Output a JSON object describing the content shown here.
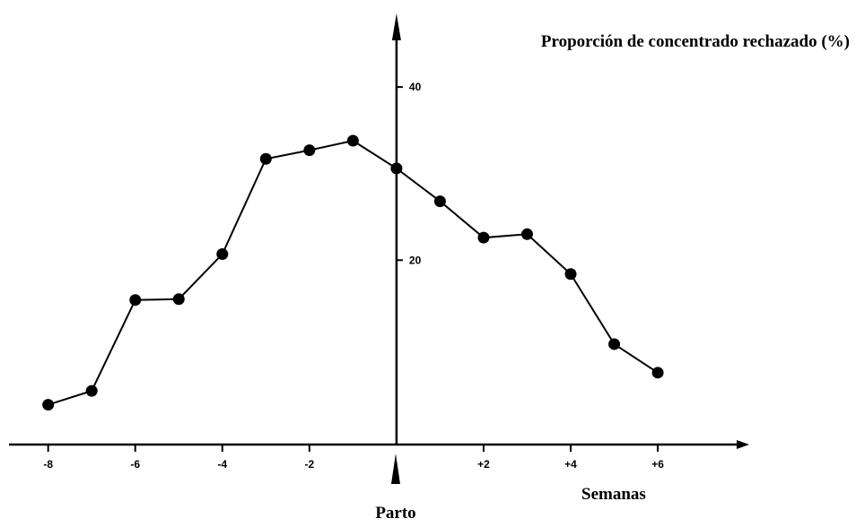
{
  "chart_data": {
    "type": "line",
    "y_label": "Proporción de concentrado rechazado (%)",
    "x_label": "Semanas",
    "annotation": "Parto",
    "x": [
      -8,
      -7,
      -6,
      -5,
      -4,
      -3,
      -2,
      -1,
      0,
      1,
      2,
      3,
      4,
      5,
      6
    ],
    "series": [
      {
        "color": "#000000",
        "values": [
          3.3,
          4.9,
          15.4,
          15.5,
          20.7,
          31.7,
          32.7,
          33.8,
          30.6,
          26.8,
          22.6,
          23.0,
          18.4,
          10.3,
          7.0
        ]
      }
    ],
    "xlim": [
      -8.9,
      8.1
    ],
    "xticks": [
      -8,
      -6,
      -4,
      -2,
      {
        "value": 2,
        "label": "+2"
      },
      {
        "value": 4,
        "label": "+4"
      },
      {
        "value": 6,
        "label": "+6"
      }
    ],
    "ylim": [
      -1.3,
      48.5
    ],
    "yticks": [
      20,
      40
    ],
    "grid": false
  }
}
